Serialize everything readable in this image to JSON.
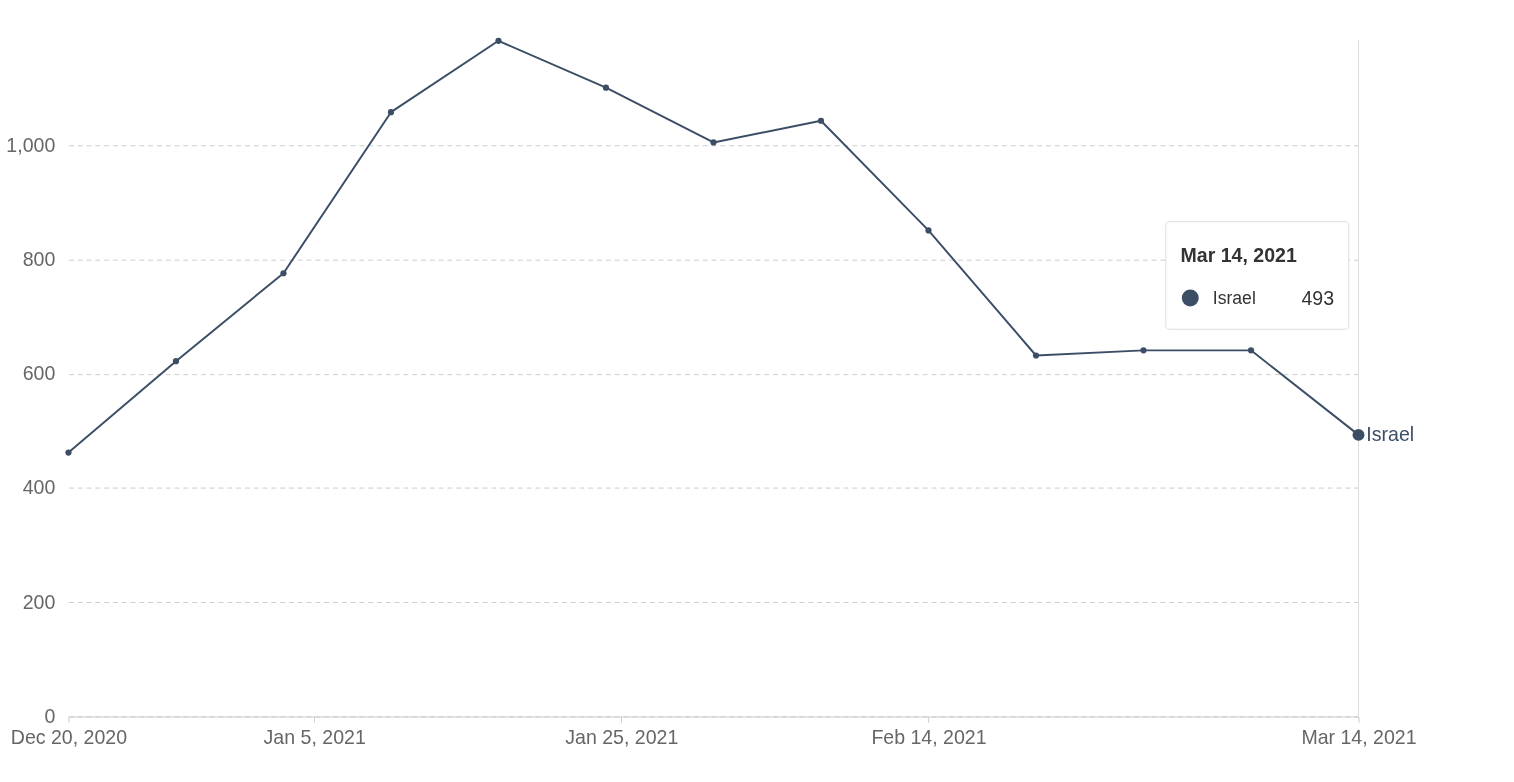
{
  "chart_data": {
    "type": "line",
    "x": [
      "2020-12-20",
      "2020-12-27",
      "2021-01-03",
      "2021-01-10",
      "2021-01-17",
      "2021-01-24",
      "2021-01-31",
      "2021-02-07",
      "2021-02-14",
      "2021-02-21",
      "2021-02-28",
      "2021-03-07",
      "2021-03-14"
    ],
    "series": [
      {
        "name": "Israel",
        "color": "#3c4e66",
        "values": [
          462,
          622,
          776,
          1058,
          1183,
          1101,
          1005,
          1043,
          851,
          632,
          641,
          641,
          493
        ]
      }
    ],
    "xlim": [
      "2020-12-20",
      "2021-03-14"
    ],
    "xticks": [
      {
        "value": "2020-12-20",
        "label": "Dec 20, 2020"
      },
      {
        "value": "2021-01-05",
        "label": "Jan 5, 2021"
      },
      {
        "value": "2021-01-25",
        "label": "Jan 25, 2021"
      },
      {
        "value": "2021-02-14",
        "label": "Feb 14, 2021"
      },
      {
        "value": "2021-03-14",
        "label": "Mar 14, 2021"
      }
    ],
    "ylim": [
      0,
      1185
    ],
    "yticks": [
      0,
      200,
      400,
      600,
      800,
      {
        "value": 1000,
        "label": "1,000"
      }
    ],
    "grid": "y",
    "marker": "circle",
    "line_style": "solid",
    "legend": "right",
    "annotations": [
      "Mar 14, 2021",
      "493"
    ]
  }
}
